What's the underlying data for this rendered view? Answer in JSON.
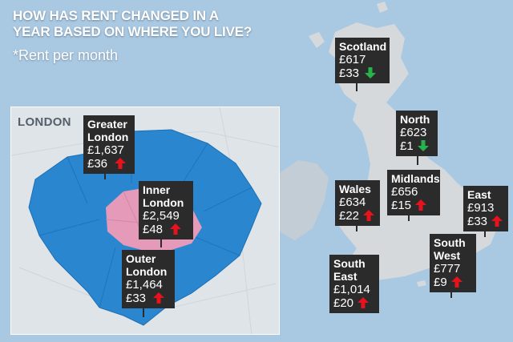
{
  "title_lines": [
    "HOW HAS RENT CHANGED IN A",
    "YEAR BASED ON WHERE YOU LIVE?"
  ],
  "subtitle": "*Rent per month",
  "inset_label": "LONDON",
  "colors": {
    "background": "#a9c8e2",
    "land": "#d9d9d9",
    "label_box": "#2b2b2b",
    "arrow_up": "#e8121c",
    "arrow_down": "#25b34a",
    "outer_london": "#2a86cf",
    "inner_london": "#e49ab8"
  },
  "regions": {
    "scotland": {
      "name": [
        "Scotland"
      ],
      "rent": "£617",
      "change": "£33",
      "direction": "down"
    },
    "north": {
      "name": [
        "North"
      ],
      "rent": "£623",
      "change": "£1",
      "direction": "down"
    },
    "wales": {
      "name": [
        "Wales"
      ],
      "rent": "£634",
      "change": "£22",
      "direction": "up"
    },
    "midlands": {
      "name": [
        "Midlands"
      ],
      "rent": "£656",
      "change": "£15",
      "direction": "up"
    },
    "east": {
      "name": [
        "East"
      ],
      "rent": "£913",
      "change": "£33",
      "direction": "up"
    },
    "south_west": {
      "name": [
        "South",
        "West"
      ],
      "rent": "£777",
      "change": "£9",
      "direction": "up"
    },
    "south_east": {
      "name": [
        "South",
        "East"
      ],
      "rent": "£1,014",
      "change": "£20",
      "direction": "up"
    },
    "greater_london": {
      "name": [
        "Greater",
        "London"
      ],
      "rent": "£1,637",
      "change": "£36",
      "direction": "up"
    },
    "inner_london": {
      "name": [
        "Inner",
        "London"
      ],
      "rent": "£2,549",
      "change": "£48",
      "direction": "up"
    },
    "outer_london": {
      "name": [
        "Outer",
        "London"
      ],
      "rent": "£1,464",
      "change": "£33",
      "direction": "up"
    }
  }
}
